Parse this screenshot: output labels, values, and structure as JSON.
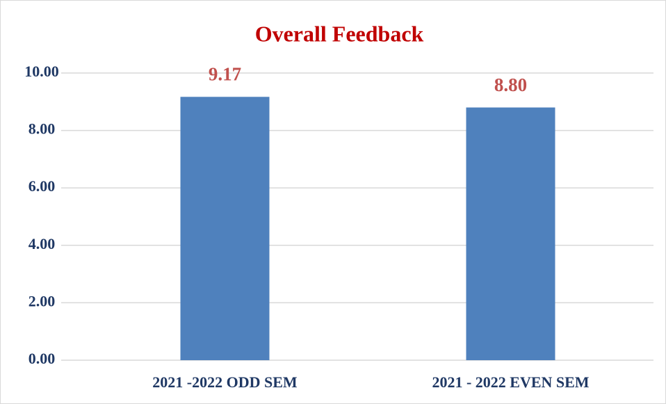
{
  "chart_data": {
    "type": "bar",
    "title": "Overall Feedback",
    "categories": [
      "2021 -2022 ODD SEM",
      "2021 - 2022 EVEN SEM"
    ],
    "values": [
      9.17,
      8.8
    ],
    "value_labels": [
      "9.17",
      "8.80"
    ],
    "color": "#4f81bd",
    "ylim": [
      0,
      10
    ],
    "yticks": [
      {
        "value": 0,
        "label": "0.00"
      },
      {
        "value": 2,
        "label": "2.00"
      },
      {
        "value": 4,
        "label": "4.00"
      },
      {
        "value": 6,
        "label": "6.00"
      },
      {
        "value": 8,
        "label": "8.00"
      },
      {
        "value": 10,
        "label": "10.00"
      }
    ],
    "grid": true
  }
}
